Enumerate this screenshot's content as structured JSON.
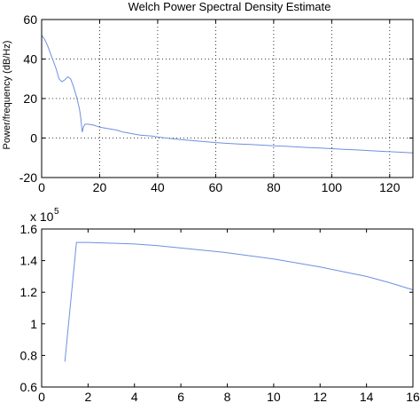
{
  "chart_data": [
    {
      "type": "line",
      "title": "Welch Power Spectral Density Estimate",
      "xlabel": "",
      "ylabel": "Power/frequency (dB/Hz)",
      "xlim": [
        0,
        128
      ],
      "ylim": [
        -20,
        60
      ],
      "xticks": [
        0,
        20,
        40,
        60,
        80,
        100,
        120
      ],
      "yticks": [
        -20,
        0,
        20,
        40,
        60
      ],
      "grid": true,
      "line_color": "#6f8fe0",
      "series": [
        {
          "x": [
            0,
            1,
            2,
            3,
            4,
            5,
            6,
            7,
            8,
            9,
            10,
            11,
            12,
            13,
            13.5,
            14,
            14.5,
            15,
            16,
            18,
            20,
            22,
            24,
            26,
            28,
            30,
            32,
            34,
            36,
            38,
            40,
            44,
            48,
            52,
            56,
            60,
            64,
            68,
            72,
            76,
            80,
            84,
            88,
            92,
            96,
            100,
            104,
            108,
            112,
            116,
            120,
            124,
            128
          ],
          "y": [
            52,
            50,
            47,
            43,
            39,
            35,
            30,
            28.5,
            29.5,
            31,
            30,
            26,
            21,
            15,
            10,
            3,
            6,
            7,
            7,
            6.5,
            5.5,
            5,
            4.5,
            4,
            3,
            2.5,
            2,
            1.5,
            1.2,
            1,
            0.5,
            -0.2,
            -0.8,
            -1.3,
            -1.8,
            -2.3,
            -2.7,
            -3,
            -3.3,
            -3.6,
            -3.9,
            -4.2,
            -4.5,
            -4.8,
            -5.1,
            -5.4,
            -5.7,
            -6,
            -6.3,
            -6.6,
            -6.9,
            -7.2,
            -7.5
          ]
        }
      ]
    },
    {
      "type": "line",
      "title": "",
      "xlabel": "",
      "ylabel": "",
      "axis_multiplier": "x 10",
      "axis_multiplier_exp": "5",
      "xlim": [
        0,
        16
      ],
      "ylim": [
        0.6,
        1.6
      ],
      "xticks": [
        0,
        2,
        4,
        6,
        8,
        10,
        12,
        14,
        16
      ],
      "yticks": [
        0.6,
        0.8,
        1,
        1.2,
        1.4,
        1.6
      ],
      "ytick_labels": [
        "0.6",
        "0.8",
        "1",
        "1.2",
        "1.4",
        "1.6"
      ],
      "grid": false,
      "line_color": "#6f8fe0",
      "series": [
        {
          "x": [
            1,
            1.5,
            2,
            3,
            4,
            5,
            6,
            7,
            8,
            9,
            10,
            11,
            12,
            13,
            14,
            15,
            16
          ],
          "y": [
            0.76,
            1.515,
            1.515,
            1.51,
            1.505,
            1.495,
            1.48,
            1.465,
            1.45,
            1.43,
            1.41,
            1.385,
            1.36,
            1.33,
            1.3,
            1.26,
            1.215
          ]
        }
      ]
    }
  ]
}
